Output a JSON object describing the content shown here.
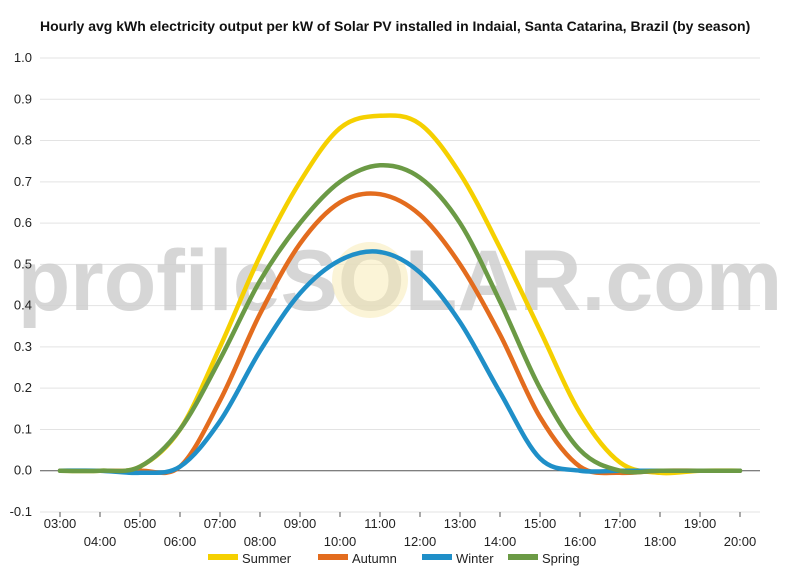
{
  "chart_data": {
    "type": "line",
    "title": "Hourly avg kWh electricity output per kW of Solar PV installed in Indaial, Santa Catarina, Brazil (by season)",
    "xlabel": "",
    "ylabel": "",
    "watermark": "profileSOLAR.com",
    "x": [
      "03:00",
      "04:00",
      "05:00",
      "06:00",
      "07:00",
      "08:00",
      "09:00",
      "10:00",
      "11:00",
      "12:00",
      "13:00",
      "14:00",
      "15:00",
      "16:00",
      "17:00",
      "18:00",
      "19:00",
      "20:00"
    ],
    "ylim": [
      -0.1,
      1.0
    ],
    "yticks": [
      "-0.1",
      "0.0",
      "0.1",
      "0.2",
      "0.3",
      "0.4",
      "0.5",
      "0.6",
      "0.7",
      "0.8",
      "0.9",
      "1.0"
    ],
    "grid": true,
    "legend_position": "bottom",
    "series": [
      {
        "name": "Summer",
        "color": "#F5D000",
        "values": [
          0.0,
          0.0,
          0.01,
          0.1,
          0.3,
          0.52,
          0.7,
          0.83,
          0.86,
          0.84,
          0.72,
          0.54,
          0.34,
          0.14,
          0.02,
          -0.005,
          0.0,
          0.0
        ]
      },
      {
        "name": "Autumn",
        "color": "#E36C1E",
        "values": [
          0.0,
          0.0,
          0.0,
          0.01,
          0.17,
          0.38,
          0.55,
          0.65,
          0.67,
          0.62,
          0.5,
          0.33,
          0.13,
          0.01,
          -0.005,
          0.0,
          0.0,
          0.0
        ]
      },
      {
        "name": "Winter",
        "color": "#1F8FC8",
        "values": [
          0.0,
          0.0,
          -0.005,
          0.01,
          0.12,
          0.29,
          0.43,
          0.51,
          0.53,
          0.48,
          0.36,
          0.19,
          0.03,
          0.0,
          0.0,
          0.0,
          0.0,
          0.0
        ]
      },
      {
        "name": "Spring",
        "color": "#6B9A45",
        "values": [
          0.0,
          0.0,
          0.01,
          0.1,
          0.27,
          0.46,
          0.6,
          0.7,
          0.74,
          0.71,
          0.6,
          0.41,
          0.2,
          0.05,
          0.0,
          0.0,
          0.0,
          0.0
        ]
      }
    ]
  }
}
